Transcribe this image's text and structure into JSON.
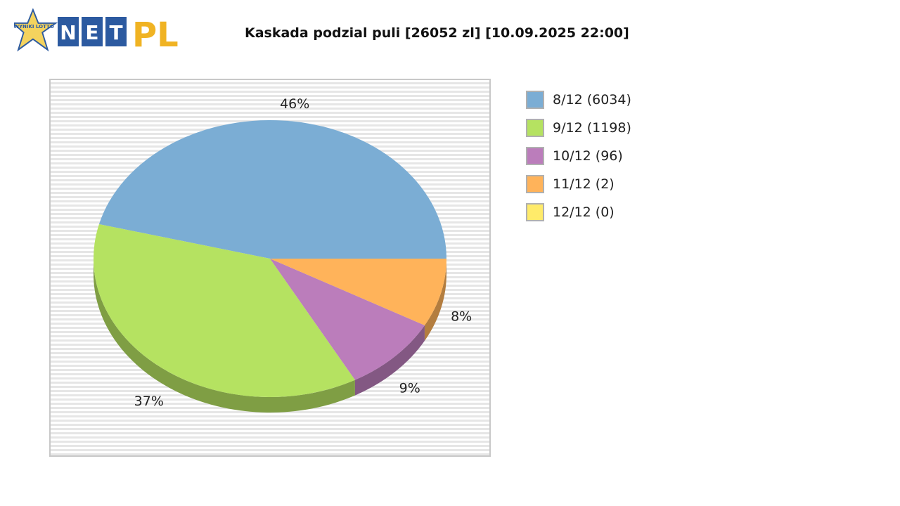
{
  "logo": {
    "badge_text": "WYNIKI LOTTO",
    "letters": [
      "N",
      "E",
      "T"
    ],
    "suffix": "PL",
    "brand_blue": "#2c5aa0",
    "brand_yellow": "#f0b323"
  },
  "chart_data": {
    "type": "pie",
    "title": "Kaskada podzial puli [26052 zl] [10.09.2025 22:00]",
    "categories": [
      "8/12 (6034)",
      "9/12 (1198)",
      "10/12 (96)",
      "11/12 (2)",
      "12/12 (0)"
    ],
    "values": [
      46,
      37,
      9,
      8,
      0
    ],
    "labels": [
      "46%",
      "37%",
      "9%",
      "8%",
      ""
    ],
    "colors": [
      "#7badd4",
      "#b5e261",
      "#bb7dbb",
      "#ffb35a",
      "#ffeb6a"
    ],
    "legend": "right",
    "style": "3d"
  }
}
